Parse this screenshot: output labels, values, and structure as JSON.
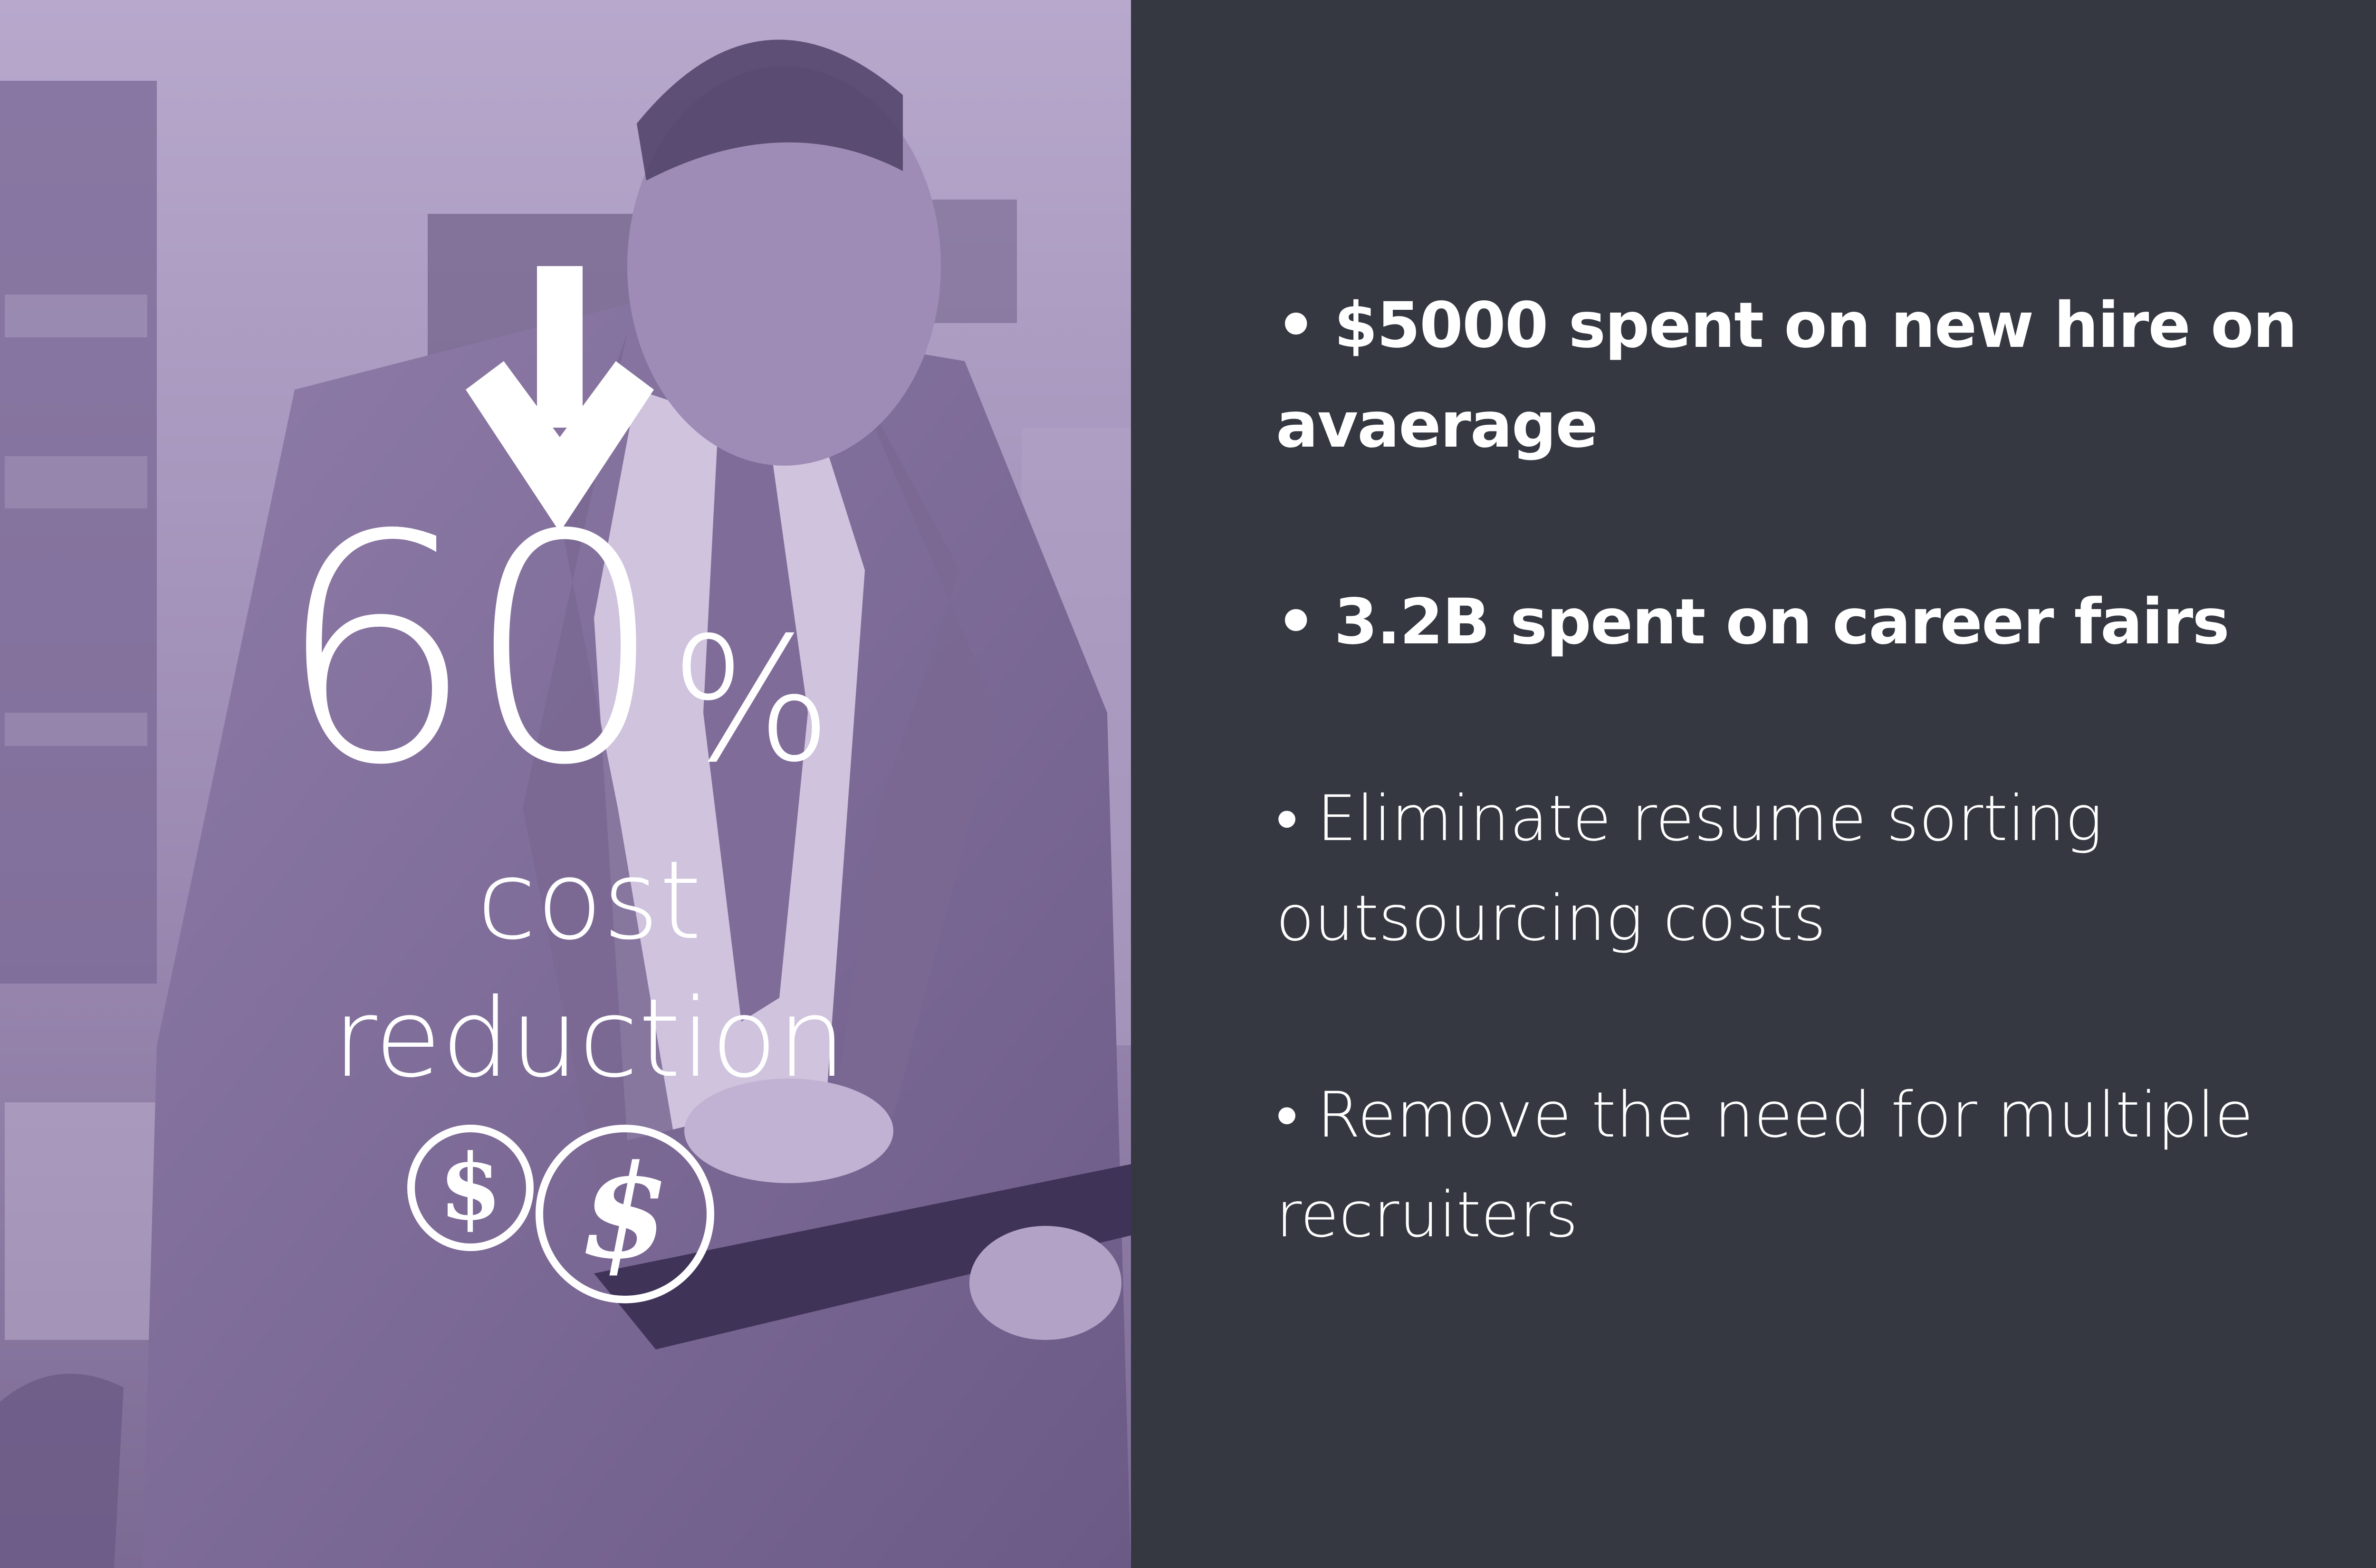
{
  "stat": {
    "arrow_icon": "down-arrow-icon",
    "number": "60",
    "percent_sign": "%",
    "caption_line1": "cost",
    "caption_line2": "reduction",
    "coin_icons": [
      "dollar-coin-icon",
      "dollar-coin-icon"
    ]
  },
  "bullets": [
    {
      "marker": "•",
      "text": "$5000 spent on new hire on avaerage",
      "weight": "bold"
    },
    {
      "marker": "•",
      "text": "3.2B spent on career fairs",
      "weight": "bold"
    },
    {
      "marker": "•",
      "text": "Eliminate resume sorting outsourcing costs",
      "weight": "light"
    },
    {
      "marker": "•",
      "text": "Remove the need for multiple recruiters",
      "weight": "light"
    }
  ],
  "colors": {
    "photo_tint": "#a391ba",
    "panel_background": "#353841",
    "text": "#ffffff"
  }
}
